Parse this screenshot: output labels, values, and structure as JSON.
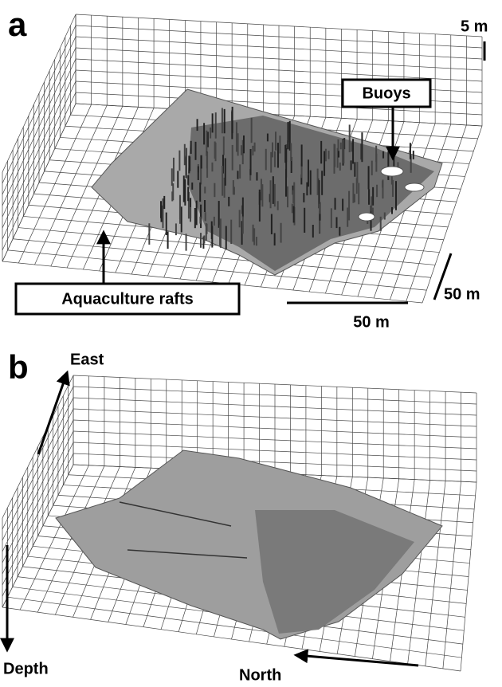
{
  "panel_a": {
    "label": "a",
    "vertical_scale": "5 m",
    "callouts": [
      "Buoys",
      "Aquaculture rafts"
    ],
    "scale_depth": "50 m",
    "scale_width": "50 m"
  },
  "panel_b": {
    "label": "b",
    "directions": [
      "East",
      "Depth",
      "North"
    ]
  }
}
